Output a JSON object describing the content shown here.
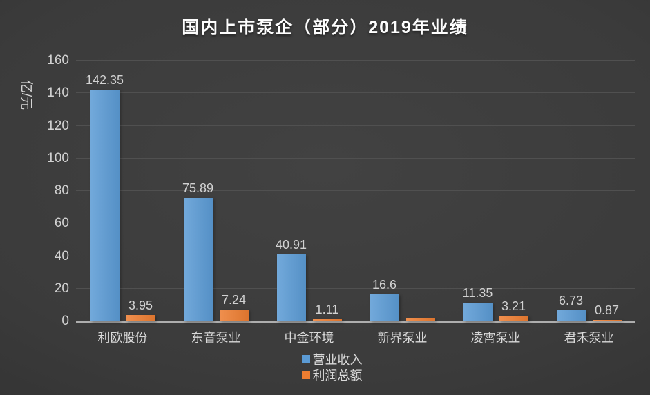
{
  "chart_data": {
    "type": "bar",
    "title": "国内上市泵企（部分）2019年业绩",
    "ylabel": "亿/元",
    "xlabel": "",
    "ylim": [
      0,
      160
    ],
    "yticks": [
      0,
      20,
      40,
      60,
      80,
      100,
      120,
      140,
      160
    ],
    "grid": true,
    "legend_position": "bottom-center",
    "categories": [
      "利欧股份",
      "东音泵业",
      "中金环境",
      "新界泵业",
      "凌霄泵业",
      "君禾泵业"
    ],
    "series": [
      {
        "name": "营业收入",
        "color": "#5b9bd5",
        "values": [
          142.35,
          75.89,
          40.91,
          16.6,
          11.35,
          6.73
        ],
        "labels": [
          "142.35",
          "75.89",
          "40.91",
          "16.6",
          "11.35",
          "6.73"
        ]
      },
      {
        "name": "利润总额",
        "color": "#ed7d31",
        "values": [
          3.95,
          7.24,
          1.11,
          1.5,
          3.21,
          0.87
        ],
        "labels": [
          "3.95",
          "7.24",
          "1.11",
          "",
          "3.21",
          "0.87"
        ]
      }
    ]
  },
  "colors": {
    "background": "#3a3a3a",
    "title_text": "#fdfdfd",
    "tick_text": "#d2d2d2",
    "category_text": "#d9d9d9",
    "gridline": "#505050",
    "axis_line": "#aeaeae"
  }
}
